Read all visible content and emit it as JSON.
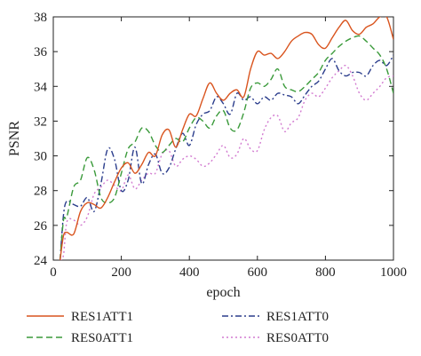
{
  "chart_data": {
    "type": "line",
    "xlabel": "epoch",
    "ylabel": "PSNR",
    "xlim": [
      0,
      1000
    ],
    "ylim": [
      24,
      38
    ],
    "xticks": [
      "0",
      "200",
      "400",
      "600",
      "800",
      "1000"
    ],
    "yticks": [
      "24",
      "26",
      "28",
      "30",
      "32",
      "34",
      "36",
      "38"
    ],
    "grid": false,
    "legend_position": "bottom",
    "series": [
      {
        "name": "RES1ATT1",
        "color": "#d9541e",
        "style": "solid",
        "x": [
          20,
          30,
          40,
          60,
          80,
          100,
          120,
          140,
          160,
          180,
          200,
          220,
          240,
          260,
          280,
          300,
          320,
          340,
          360,
          380,
          400,
          420,
          440,
          460,
          480,
          500,
          520,
          540,
          560,
          580,
          600,
          620,
          640,
          660,
          680,
          700,
          720,
          740,
          760,
          780,
          800,
          820,
          840,
          860,
          880,
          900,
          920,
          940,
          960,
          980,
          1000
        ],
        "y": [
          24.0,
          25.4,
          25.6,
          25.5,
          26.8,
          27.3,
          27.2,
          27.0,
          27.6,
          28.5,
          29.3,
          29.6,
          29.0,
          29.5,
          30.2,
          30.0,
          31.2,
          31.5,
          30.5,
          31.5,
          32.4,
          32.3,
          33.3,
          34.2,
          33.6,
          33.2,
          33.6,
          33.8,
          33.4,
          35.0,
          36.0,
          35.8,
          35.9,
          35.6,
          36.0,
          36.6,
          36.9,
          37.1,
          37.0,
          36.4,
          36.2,
          36.8,
          37.4,
          37.8,
          37.2,
          37.0,
          37.4,
          37.6,
          38.0,
          38.0,
          36.7
        ]
      },
      {
        "name": "RES0ATT1",
        "color": "#3a9a3a",
        "style": "dashed",
        "x": [
          20,
          30,
          40,
          60,
          80,
          100,
          120,
          140,
          160,
          180,
          200,
          220,
          240,
          260,
          280,
          300,
          320,
          340,
          360,
          380,
          400,
          420,
          440,
          460,
          480,
          500,
          520,
          540,
          560,
          580,
          600,
          620,
          640,
          660,
          680,
          700,
          720,
          740,
          760,
          780,
          800,
          820,
          840,
          860,
          880,
          900,
          920,
          940,
          960,
          980,
          1000
        ],
        "y": [
          24.0,
          26.3,
          26.5,
          28.2,
          28.6,
          29.9,
          29.2,
          27.6,
          27.3,
          27.6,
          29.0,
          30.4,
          30.8,
          31.6,
          31.4,
          30.6,
          30.2,
          30.6,
          31.0,
          30.8,
          31.6,
          32.2,
          32.0,
          31.6,
          32.3,
          32.6,
          31.6,
          31.5,
          32.5,
          33.9,
          34.2,
          34.0,
          34.4,
          35.0,
          34.0,
          33.8,
          33.7,
          34.0,
          34.4,
          34.8,
          35.5,
          35.9,
          36.3,
          36.6,
          36.8,
          36.9,
          36.6,
          36.2,
          35.8,
          35.0,
          33.6
        ]
      },
      {
        "name": "RES1ATT0",
        "color": "#2b3d8c",
        "style": "dashdot",
        "x": [
          20,
          30,
          40,
          60,
          80,
          100,
          120,
          140,
          160,
          180,
          200,
          220,
          240,
          260,
          280,
          300,
          320,
          340,
          360,
          380,
          400,
          420,
          440,
          460,
          480,
          500,
          520,
          540,
          560,
          580,
          600,
          620,
          640,
          660,
          680,
          700,
          720,
          740,
          760,
          780,
          800,
          820,
          840,
          860,
          880,
          900,
          920,
          940,
          960,
          980,
          1000
        ],
        "y": [
          24.0,
          26.6,
          27.4,
          27.2,
          27.1,
          27.6,
          26.8,
          28.4,
          30.4,
          29.8,
          28.0,
          28.6,
          30.5,
          28.4,
          29.5,
          30.1,
          29.0,
          29.3,
          30.4,
          31.3,
          30.6,
          31.8,
          32.4,
          32.6,
          33.4,
          33.0,
          32.4,
          33.6,
          33.2,
          33.4,
          33.0,
          33.4,
          33.2,
          33.6,
          33.5,
          33.4,
          33.0,
          33.5,
          34.0,
          34.3,
          35.0,
          35.6,
          34.9,
          34.6,
          34.8,
          34.8,
          34.6,
          35.2,
          35.5,
          35.2,
          35.8
        ]
      },
      {
        "name": "RES0ATT0",
        "color": "#d27ad0",
        "style": "dotted",
        "x": [
          20,
          30,
          40,
          60,
          80,
          100,
          120,
          140,
          160,
          180,
          200,
          220,
          240,
          260,
          280,
          300,
          320,
          340,
          360,
          380,
          400,
          420,
          440,
          460,
          480,
          500,
          520,
          540,
          560,
          580,
          600,
          620,
          640,
          660,
          680,
          700,
          720,
          740,
          760,
          780,
          800,
          820,
          840,
          860,
          880,
          900,
          920,
          940,
          960,
          980,
          1000
        ],
        "y": [
          24.0,
          24.3,
          26.2,
          26.3,
          26.0,
          26.5,
          27.8,
          28.2,
          28.6,
          28.3,
          28.0,
          28.9,
          28.1,
          28.6,
          29.0,
          29.0,
          30.1,
          30.3,
          29.4,
          29.8,
          30.0,
          29.8,
          29.4,
          29.6,
          30.1,
          30.6,
          29.9,
          30.1,
          31.0,
          30.4,
          30.3,
          31.5,
          32.2,
          32.3,
          31.4,
          31.9,
          32.2,
          33.2,
          33.6,
          33.4,
          33.9,
          34.5,
          34.9,
          35.2,
          34.6,
          33.6,
          33.2,
          33.6,
          34.0,
          34.5,
          34.6
        ]
      }
    ]
  }
}
